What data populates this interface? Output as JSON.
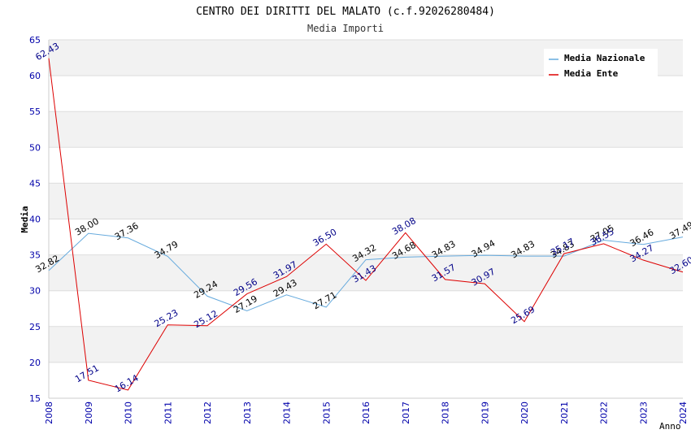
{
  "chart_data": {
    "type": "line",
    "title": "CENTRO DEI DIRITTI DEL MALATO (c.f.92026280484)",
    "subtitle": "Media Importi",
    "xlabel": "Anno",
    "ylabel": "Media",
    "ylim": [
      15,
      65
    ],
    "yticks": [
      "15",
      "20",
      "25",
      "30",
      "35",
      "40",
      "45",
      "50",
      "55",
      "60",
      "65"
    ],
    "categories": [
      "2008",
      "2009",
      "2010",
      "2011",
      "2012",
      "2013",
      "2014",
      "2015",
      "2016",
      "2017",
      "2018",
      "2019",
      "2020",
      "2021",
      "2022",
      "2023",
      "2024"
    ],
    "grid": true,
    "legend_position": "top-right",
    "series": [
      {
        "name": "Media Nazionale",
        "color": "#66aadd",
        "label_color": "#000000",
        "values": [
          32.82,
          38.0,
          37.36,
          34.79,
          29.24,
          27.19,
          29.43,
          27.71,
          34.32,
          34.68,
          34.83,
          34.94,
          34.83,
          34.83,
          37.05,
          36.46,
          37.49
        ],
        "labels": [
          "32.82",
          "38.00",
          "37.36",
          "34.79",
          "29.24",
          "27.19",
          "29.43",
          "27.71",
          "34.32",
          "34.68",
          "34.83",
          "34.94",
          "34.83",
          "34.83",
          "37.05",
          "36.46",
          "37.49"
        ]
      },
      {
        "name": "Media Ente",
        "color": "#dd0000",
        "label_color": "#000088",
        "values": [
          62.43,
          17.51,
          16.14,
          25.23,
          25.12,
          29.56,
          31.97,
          36.5,
          31.43,
          38.08,
          31.57,
          30.97,
          25.69,
          35.17,
          36.55,
          34.27,
          32.6
        ],
        "labels": [
          "62.43",
          "17.51",
          "16.14",
          "25.23",
          "25.12",
          "29.56",
          "31.97",
          "36.50",
          "31.43",
          "38.08",
          "31.57",
          "30.97",
          "25.69",
          "35.17",
          "36.55",
          "34.27",
          "32.60"
        ]
      }
    ]
  }
}
